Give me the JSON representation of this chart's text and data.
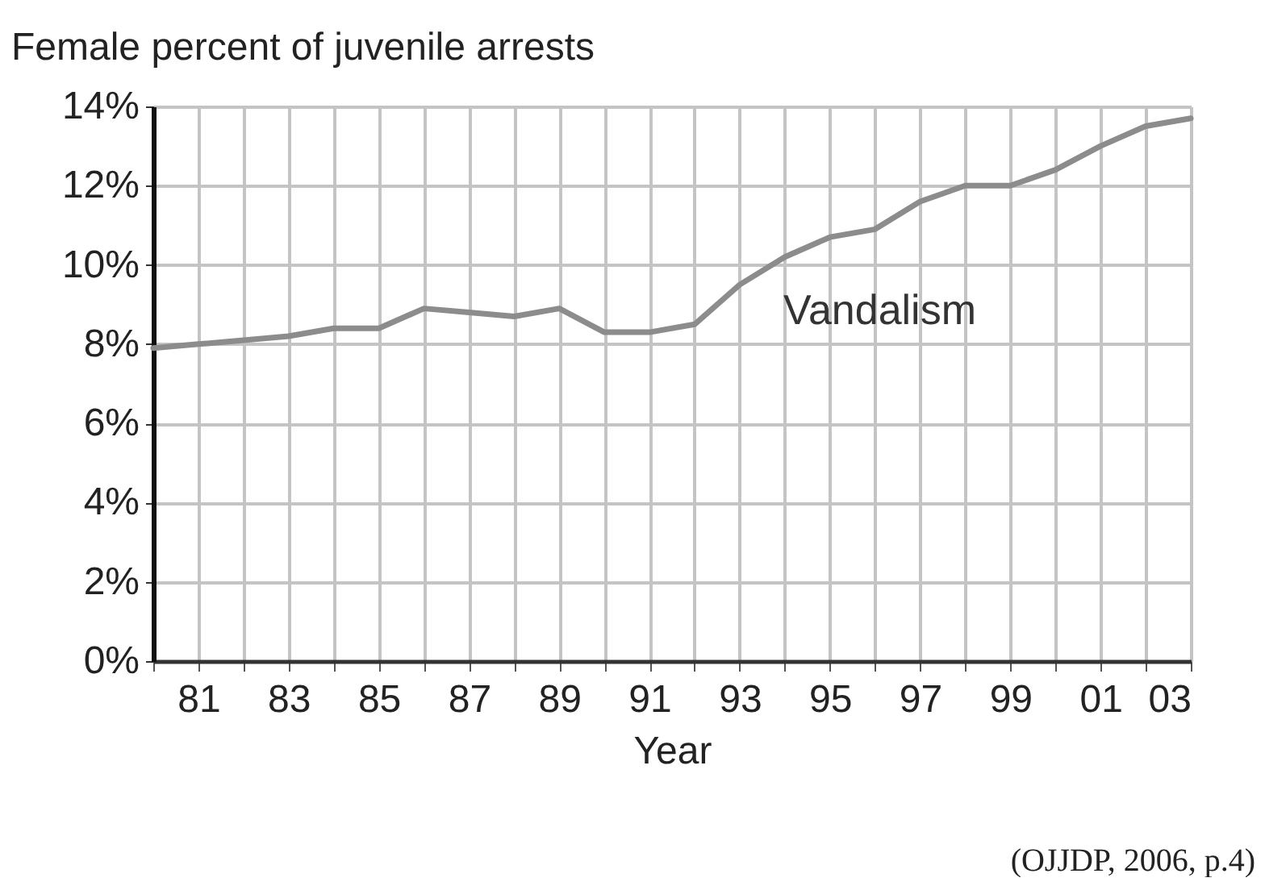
{
  "chart_data": {
    "type": "line",
    "title": "Female percent of juvenile arrests",
    "xlabel": "Year",
    "annotations": [
      "(OJJDP, 2006, p.4)"
    ],
    "x": [
      1980,
      1981,
      1982,
      1983,
      1984,
      1985,
      1986,
      1987,
      1988,
      1989,
      1990,
      1991,
      1992,
      1993,
      1994,
      1995,
      1996,
      1997,
      1998,
      1999,
      2000,
      2001,
      2002,
      2003
    ],
    "series": [
      {
        "name": "Vandalism",
        "color": "#8c8c8c",
        "values": [
          7.9,
          8.0,
          8.1,
          8.2,
          8.4,
          8.4,
          8.9,
          8.8,
          8.7,
          8.9,
          8.3,
          8.3,
          8.5,
          9.5,
          10.2,
          10.7,
          10.9,
          11.6,
          12.0,
          12.0,
          12.4,
          13.0,
          13.5,
          13.7
        ]
      }
    ],
    "xlim": [
      1980,
      2003
    ],
    "xticks": [
      {
        "value": 1980,
        "label": null
      },
      {
        "value": 1981,
        "label": "81"
      },
      {
        "value": 1982,
        "label": null
      },
      {
        "value": 1983,
        "label": "83"
      },
      {
        "value": 1984,
        "label": null
      },
      {
        "value": 1985,
        "label": "85"
      },
      {
        "value": 1986,
        "label": null
      },
      {
        "value": 1987,
        "label": "87"
      },
      {
        "value": 1988,
        "label": null
      },
      {
        "value": 1989,
        "label": "89"
      },
      {
        "value": 1990,
        "label": null
      },
      {
        "value": 1991,
        "label": "91"
      },
      {
        "value": 1992,
        "label": null
      },
      {
        "value": 1993,
        "label": "93"
      },
      {
        "value": 1994,
        "label": null
      },
      {
        "value": 1995,
        "label": "95"
      },
      {
        "value": 1996,
        "label": null
      },
      {
        "value": 1997,
        "label": "97"
      },
      {
        "value": 1998,
        "label": null
      },
      {
        "value": 1999,
        "label": "99"
      },
      {
        "value": 2000,
        "label": null
      },
      {
        "value": 2001,
        "label": "01"
      },
      {
        "value": 2002,
        "label": null
      },
      {
        "value": 2003,
        "label": "03"
      }
    ],
    "ylim": [
      0,
      14
    ],
    "yticks": [
      {
        "value": 0,
        "label": "0%"
      },
      {
        "value": 2,
        "label": "2%"
      },
      {
        "value": 4,
        "label": "4%"
      },
      {
        "value": 6,
        "label": "6%"
      },
      {
        "value": 8,
        "label": "8%"
      },
      {
        "value": 10,
        "label": "10%"
      },
      {
        "value": 12,
        "label": "12%"
      },
      {
        "value": 14,
        "label": "14%"
      }
    ],
    "grid": true,
    "marker": "none",
    "line_style": "solid"
  }
}
